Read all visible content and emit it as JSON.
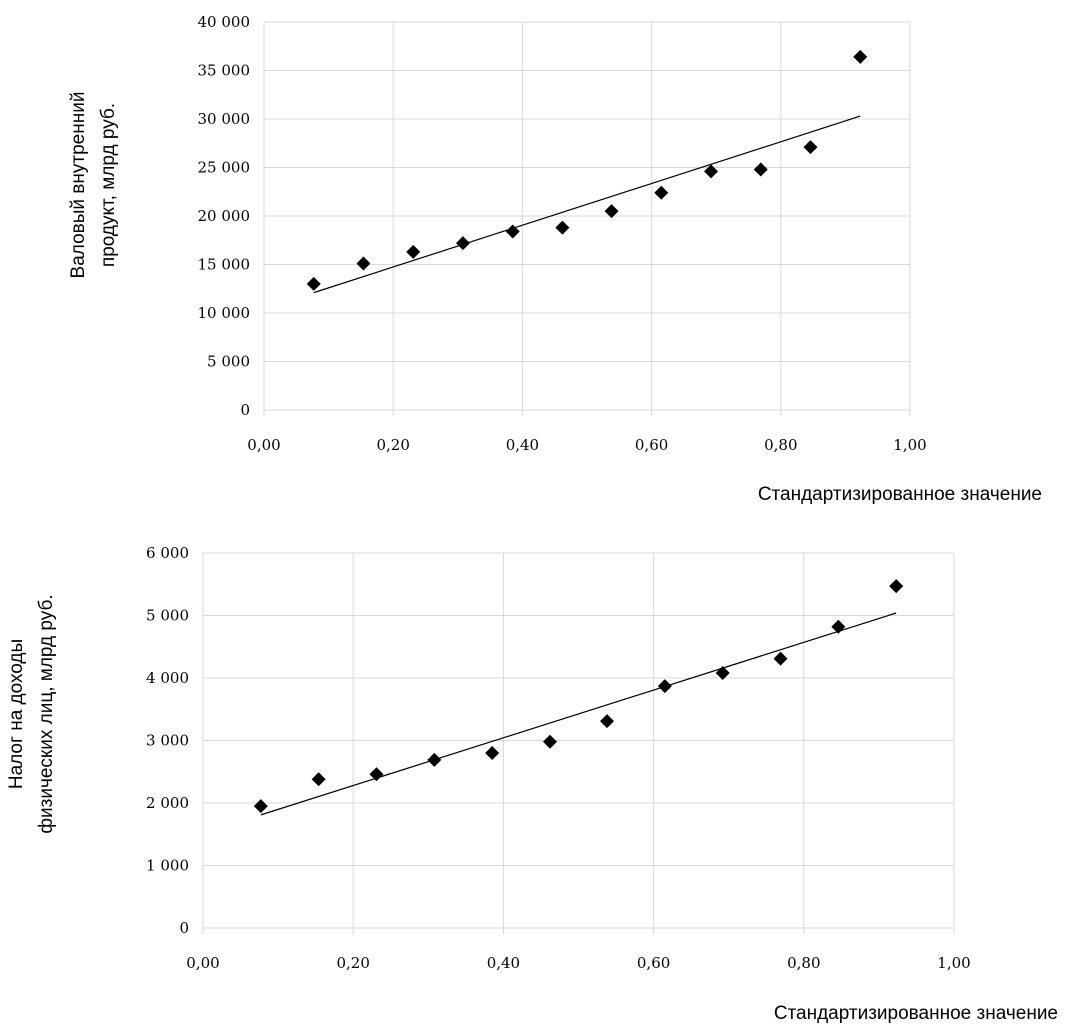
{
  "chart_data": [
    {
      "type": "scatter",
      "title": "",
      "xlabel": "Стандартизированное значение",
      "ylabel_line1": "Валовый внутренний",
      "ylabel_line2": "продукт, млрд руб.",
      "xlim": [
        0,
        1
      ],
      "ylim": [
        0,
        40000
      ],
      "grid": true,
      "x_ticks": [
        0,
        0.2,
        0.4,
        0.6,
        0.8,
        1.0
      ],
      "x_tick_labels": [
        "0,00",
        "0,20",
        "0,40",
        "0,60",
        "0,80",
        "1,00"
      ],
      "y_ticks": [
        0,
        5000,
        10000,
        15000,
        20000,
        25000,
        30000,
        35000,
        40000
      ],
      "y_tick_labels": [
        "0",
        "5 000",
        "10 000",
        "15 000",
        "20 000",
        "25 000",
        "30 000",
        "35 000",
        "40 000"
      ],
      "series": [
        {
          "x": [
            0.077,
            0.154,
            0.231,
            0.308,
            0.385,
            0.462,
            0.538,
            0.615,
            0.692,
            0.769,
            0.846,
            0.923
          ],
          "y": [
            13000,
            15100,
            16300,
            17200,
            18400,
            18800,
            20500,
            22400,
            24600,
            24800,
            27100,
            36400
          ],
          "marker": "diamond",
          "color": "#000000"
        }
      ],
      "trendline": {
        "x": [
          0.077,
          0.923
        ],
        "y": [
          12100,
          30300
        ],
        "color": "#000000"
      }
    },
    {
      "type": "scatter",
      "title": "",
      "xlabel": "Стандартизированное значение",
      "ylabel_line1": "Налог на доходы",
      "ylabel_line2": "физических лиц, млрд руб.",
      "xlim": [
        0,
        1
      ],
      "ylim": [
        0,
        6000
      ],
      "grid": true,
      "x_ticks": [
        0,
        0.2,
        0.4,
        0.6,
        0.8,
        1.0
      ],
      "x_tick_labels": [
        "0,00",
        "0,20",
        "0,40",
        "0,60",
        "0,80",
        "1,00"
      ],
      "y_ticks": [
        0,
        1000,
        2000,
        3000,
        4000,
        5000,
        6000
      ],
      "y_tick_labels": [
        "0",
        "1 000",
        "2 000",
        "3 000",
        "4 000",
        "5 000",
        "6 000"
      ],
      "series": [
        {
          "x": [
            0.077,
            0.154,
            0.231,
            0.308,
            0.385,
            0.462,
            0.538,
            0.615,
            0.692,
            0.769,
            0.846,
            0.923
          ],
          "y": [
            1950,
            2380,
            2460,
            2690,
            2800,
            2980,
            3310,
            3870,
            4080,
            4310,
            4820,
            5470
          ],
          "marker": "diamond",
          "color": "#000000"
        }
      ],
      "trendline": {
        "x": [
          0.077,
          0.923
        ],
        "y": [
          1810,
          5040
        ],
        "color": "#000000"
      }
    }
  ]
}
